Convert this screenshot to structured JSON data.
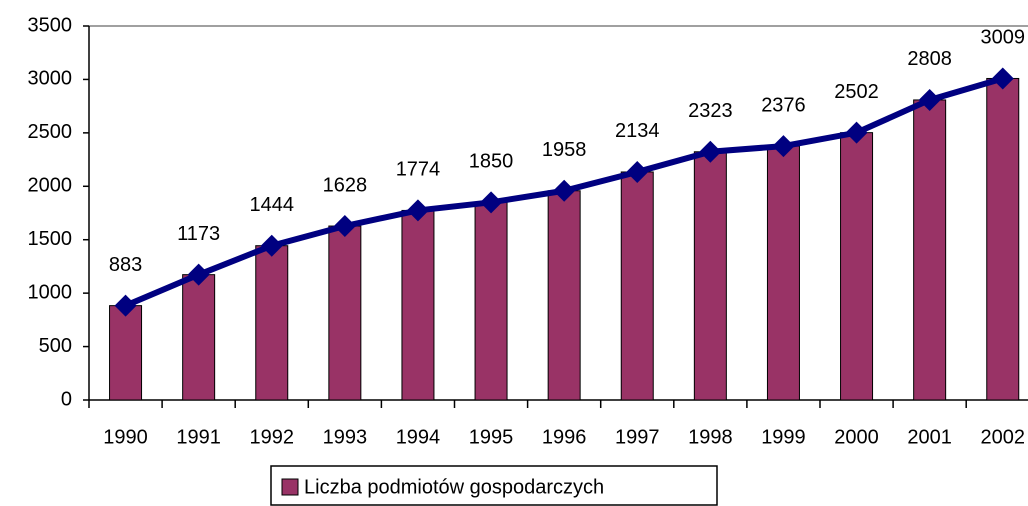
{
  "chart_data": {
    "type": "bar",
    "categories": [
      "1990",
      "1991",
      "1992",
      "1993",
      "1994",
      "1995",
      "1996",
      "1997",
      "1998",
      "1999",
      "2000",
      "2001",
      "2002"
    ],
    "series": [
      {
        "name": "Liczba podmiotów gospodarczych",
        "color": "#993366",
        "line_color": "#000080",
        "values": [
          883,
          1173,
          1444,
          1628,
          1774,
          1850,
          1958,
          2134,
          2323,
          2376,
          2502,
          2808,
          3009
        ]
      }
    ],
    "ylim": [
      0,
      3500
    ],
    "yticks": [
      0,
      500,
      1000,
      1500,
      2000,
      2500,
      3000,
      3500
    ],
    "grid": false,
    "legend": "bottom"
  }
}
